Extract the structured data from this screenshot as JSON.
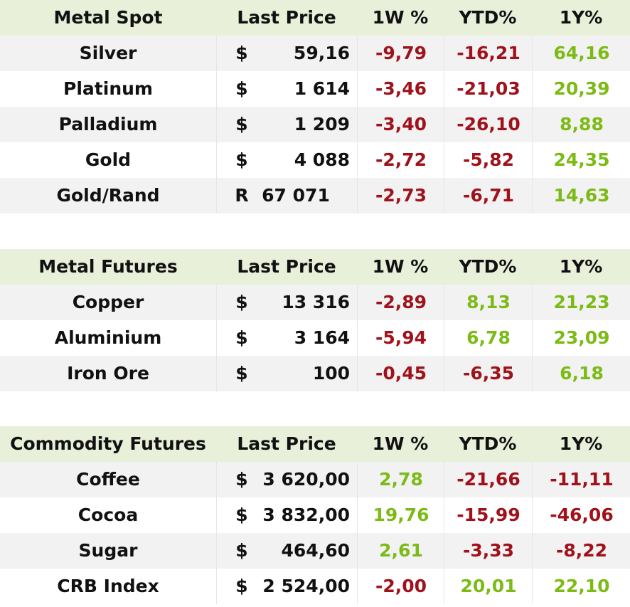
{
  "colors": {
    "header_bg": "#e8f0da",
    "stripe_bg": "#f2f2f2",
    "negative": "#a0121b",
    "positive": "#7cbb16"
  },
  "metal_spot": {
    "headers": {
      "name": "Metal Spot",
      "price": "Last Price",
      "w": "1W %",
      "ytd": "YTD%",
      "y1": "1Y%"
    },
    "rows": [
      {
        "name": "Silver",
        "cur": "$",
        "price": "59,16",
        "w": "-9,79",
        "ytd": "-16,21",
        "y1": "64,16"
      },
      {
        "name": "Platinum",
        "cur": "$",
        "price": "1 614",
        "w": "-3,46",
        "ytd": "-21,03",
        "y1": "20,39"
      },
      {
        "name": "Palladium",
        "cur": "$",
        "price": "1 209",
        "w": "-3,40",
        "ytd": "-26,10",
        "y1": "8,88"
      },
      {
        "name": "Gold",
        "cur": "$",
        "price": "4 088",
        "w": "-2,72",
        "ytd": "-5,82",
        "y1": "24,35"
      },
      {
        "name": "Gold/Rand",
        "cur": "R",
        "price": "67 071",
        "w": "-2,73",
        "ytd": "-6,71",
        "y1": "14,63"
      }
    ]
  },
  "metal_futures": {
    "headers": {
      "name": "Metal Futures",
      "price": "Last Price",
      "w": "1W %",
      "ytd": "YTD%",
      "y1": "1Y%"
    },
    "rows": [
      {
        "name": "Copper",
        "cur": "$",
        "price": "13 316",
        "w": "-2,89",
        "ytd": "8,13",
        "y1": "21,23"
      },
      {
        "name": "Aluminium",
        "cur": "$",
        "price": "3 164",
        "w": "-5,94",
        "ytd": "6,78",
        "y1": "23,09"
      },
      {
        "name": "Iron Ore",
        "cur": "$",
        "price": "100",
        "w": "-0,45",
        "ytd": "-6,35",
        "y1": "6,18"
      }
    ]
  },
  "commodity_futures": {
    "headers": {
      "name": "Commodity Futures",
      "price": "Last Price",
      "w": "1W %",
      "ytd": "YTD%",
      "y1": "1Y%"
    },
    "rows": [
      {
        "name": "Coffee",
        "cur": "$",
        "price": "3 620,00",
        "w": "2,78",
        "ytd": "-21,66",
        "y1": "-11,11"
      },
      {
        "name": "Cocoa",
        "cur": "$",
        "price": "3 832,00",
        "w": "19,76",
        "ytd": "-15,99",
        "y1": "-46,06"
      },
      {
        "name": "Sugar",
        "cur": "$",
        "price": "464,60",
        "w": "2,61",
        "ytd": "-3,33",
        "y1": "-8,22"
      },
      {
        "name": "CRB Index",
        "cur": "$",
        "price": "2 524,00",
        "w": "-2,00",
        "ytd": "20,01",
        "y1": "22,10"
      }
    ]
  }
}
